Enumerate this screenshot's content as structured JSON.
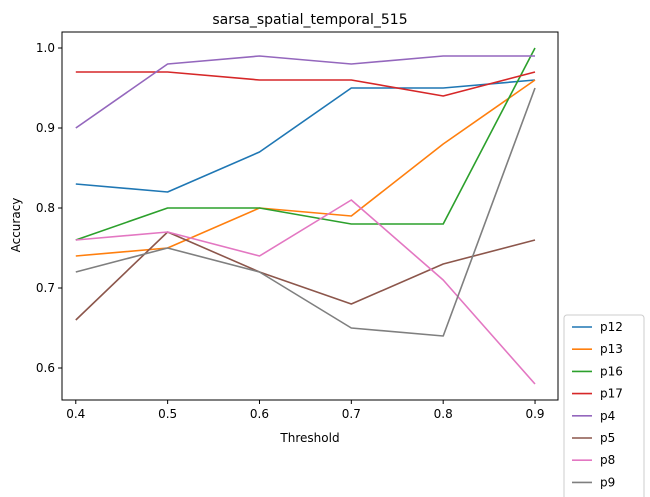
{
  "chart_data": {
    "type": "line",
    "title": "sarsa_spatial_temporal_515",
    "xlabel": "Threshold",
    "ylabel": "Accuracy",
    "x": [
      0.4,
      0.5,
      0.6,
      0.7,
      0.8,
      0.9
    ],
    "x_ticks": [
      "0.4",
      "0.5",
      "0.6",
      "0.7",
      "0.8",
      "0.9"
    ],
    "y_ticks": [
      "0.6",
      "0.7",
      "0.8",
      "0.9",
      "1.0"
    ],
    "xlim": [
      0.385,
      0.925
    ],
    "ylim": [
      0.56,
      1.02
    ],
    "grid": false,
    "legend_position": "outside-lower-right",
    "series": [
      {
        "name": "p12",
        "color": "#1f77b4",
        "values": [
          0.83,
          0.82,
          0.87,
          0.95,
          0.95,
          0.96
        ]
      },
      {
        "name": "p13",
        "color": "#ff7f0e",
        "values": [
          0.74,
          0.75,
          0.8,
          0.79,
          0.88,
          0.96
        ]
      },
      {
        "name": "p16",
        "color": "#2ca02c",
        "values": [
          0.76,
          0.8,
          0.8,
          0.78,
          0.78,
          1.0
        ]
      },
      {
        "name": "p17",
        "color": "#d62728",
        "values": [
          0.97,
          0.97,
          0.96,
          0.96,
          0.94,
          0.97
        ]
      },
      {
        "name": "p4",
        "color": "#9467bd",
        "values": [
          0.9,
          0.98,
          0.99,
          0.98,
          0.99,
          0.99
        ]
      },
      {
        "name": "p5",
        "color": "#8c564b",
        "values": [
          0.66,
          0.77,
          0.72,
          0.68,
          0.73,
          0.76
        ]
      },
      {
        "name": "p8",
        "color": "#e377c2",
        "values": [
          0.76,
          0.77,
          0.74,
          0.81,
          0.71,
          0.58
        ]
      },
      {
        "name": "p9",
        "color": "#7f7f7f",
        "values": [
          0.72,
          0.75,
          0.72,
          0.65,
          0.64,
          0.95
        ]
      }
    ]
  }
}
